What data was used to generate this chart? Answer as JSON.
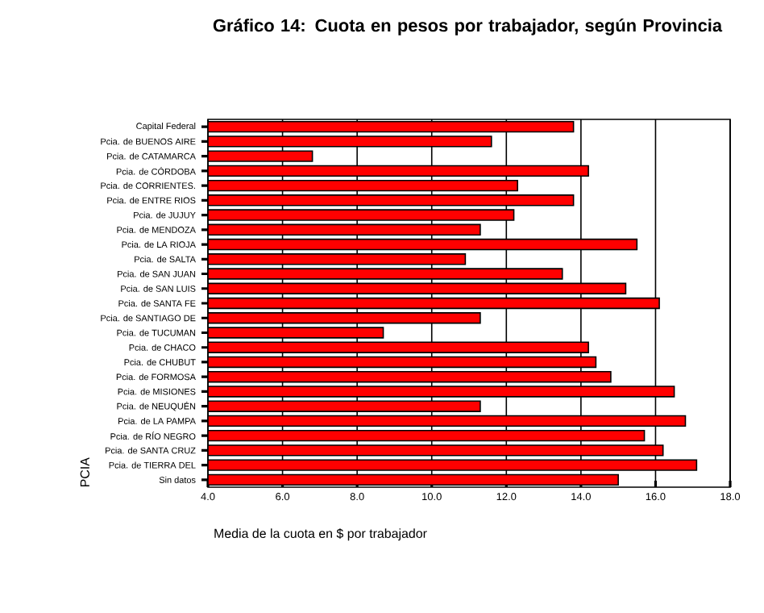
{
  "chart_data": {
    "type": "bar",
    "orientation": "horizontal",
    "title": "Gráfico 14: Cuota en pesos por trabajador, según Provincia",
    "xlabel": "Media de la cuota en $ por trabajador",
    "ylabel": "PCIA",
    "categories": [
      "Capital Federal",
      "Pcia. de BUENOS AIRE",
      "Pcia. de CATAMARCA",
      "Pcia. de CÓRDOBA",
      "Pcia. de CORRIENTES.",
      "Pcia. de ENTRE RIOS",
      "Pcia. de JUJUY",
      "Pcia. de MENDOZA",
      "Pcia. de LA RIOJA",
      "Pcia. de SALTA",
      "Pcia. de SAN JUAN",
      "Pcia. de SAN LUIS",
      "Pcia. de SANTA FE",
      "Pcia. de SANTIAGO DE",
      "Pcia. de TUCUMAN",
      "Pcia. de CHACO",
      "Pcia. de CHUBUT",
      "Pcia. de FORMOSA",
      "Pcia. de MISIONES",
      "Pcia. de NEUQUÉN",
      "Pcia. de LA PAMPA",
      "Pcia. de RÍO NEGRO",
      "Pcia. de SANTA CRUZ",
      "Pcia. de TIERRA DEL",
      "Sin datos"
    ],
    "values": [
      13.8,
      11.6,
      6.8,
      14.2,
      12.3,
      13.8,
      12.2,
      11.3,
      15.5,
      10.9,
      13.5,
      15.2,
      16.1,
      11.3,
      8.7,
      14.2,
      14.4,
      14.8,
      16.5,
      11.3,
      16.8,
      15.7,
      16.2,
      17.1,
      15.0
    ],
    "color": "#ff0000",
    "xlim": [
      4,
      18
    ],
    "xticks": [
      {
        "value": 4,
        "label": "4.0"
      },
      {
        "value": 6,
        "label": "6.0"
      },
      {
        "value": 8,
        "label": "8.0"
      },
      {
        "value": 10,
        "label": "10.0"
      },
      {
        "value": 12,
        "label": "12.0"
      },
      {
        "value": 14,
        "label": "14.0"
      },
      {
        "value": 16,
        "label": "16.0"
      },
      {
        "value": 18,
        "label": "18.0"
      }
    ],
    "grid": "x"
  }
}
